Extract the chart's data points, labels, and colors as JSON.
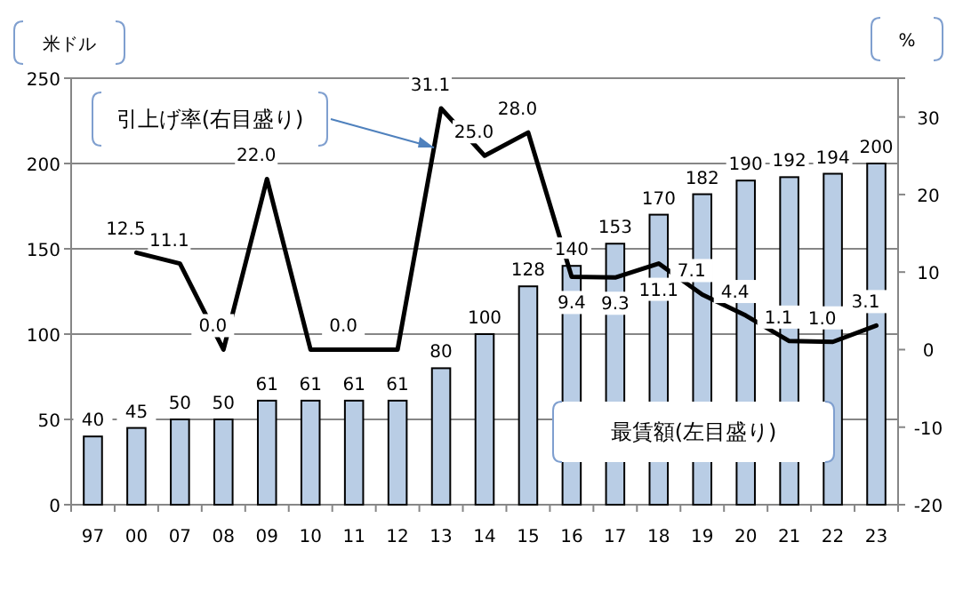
{
  "chart_data": {
    "type": "bar",
    "ylabel": "米ドル",
    "y2label": "%",
    "categories": [
      "97",
      "00",
      "07",
      "08",
      "09",
      "10",
      "11",
      "12",
      "13",
      "14",
      "15",
      "16",
      "17",
      "18",
      "19",
      "20",
      "21",
      "22",
      "23"
    ],
    "series": [
      {
        "name": "最賃額(左目盛り)",
        "color": "#b9cde5",
        "values": [
          40,
          45,
          50,
          50,
          61,
          61,
          61,
          61,
          80,
          100,
          128,
          140,
          153,
          170,
          182,
          190,
          192,
          194,
          200
        ],
        "value_labels": [
          "40",
          "45",
          "50",
          "50",
          "61",
          "61",
          "61",
          "61",
          "80",
          "100",
          "128",
          "140",
          "153",
          "170",
          "182",
          "190",
          "192",
          "194",
          "200"
        ]
      },
      {
        "name": "引上げ率(右目盛り)",
        "type": "line",
        "axis": "y2",
        "color": "#000000",
        "values": [
          null,
          12.5,
          11.1,
          0.0,
          22.0,
          0.0,
          0.0,
          0.0,
          31.1,
          25.0,
          28.0,
          9.4,
          9.3,
          11.1,
          7.1,
          4.4,
          1.1,
          1.0,
          3.1
        ],
        "value_labels": [
          null,
          "12.5",
          "11.1",
          "0.0",
          "22.0",
          null,
          "0.0",
          null,
          "31.1",
          "25.0",
          "28.0",
          "9.4",
          "9.3",
          "11.1",
          "7.1",
          "4.4",
          "1.1",
          "1.0",
          "3.1"
        ]
      }
    ],
    "ylim": [
      0,
      250
    ],
    "yticks": [
      0,
      50,
      100,
      150,
      200,
      250
    ],
    "y2lim": [
      -20,
      35
    ],
    "y2ticks": [
      -20,
      -10,
      0,
      10,
      20,
      30,
      {
        "value": 35,
        "label": null
      }
    ],
    "grid": "y"
  }
}
